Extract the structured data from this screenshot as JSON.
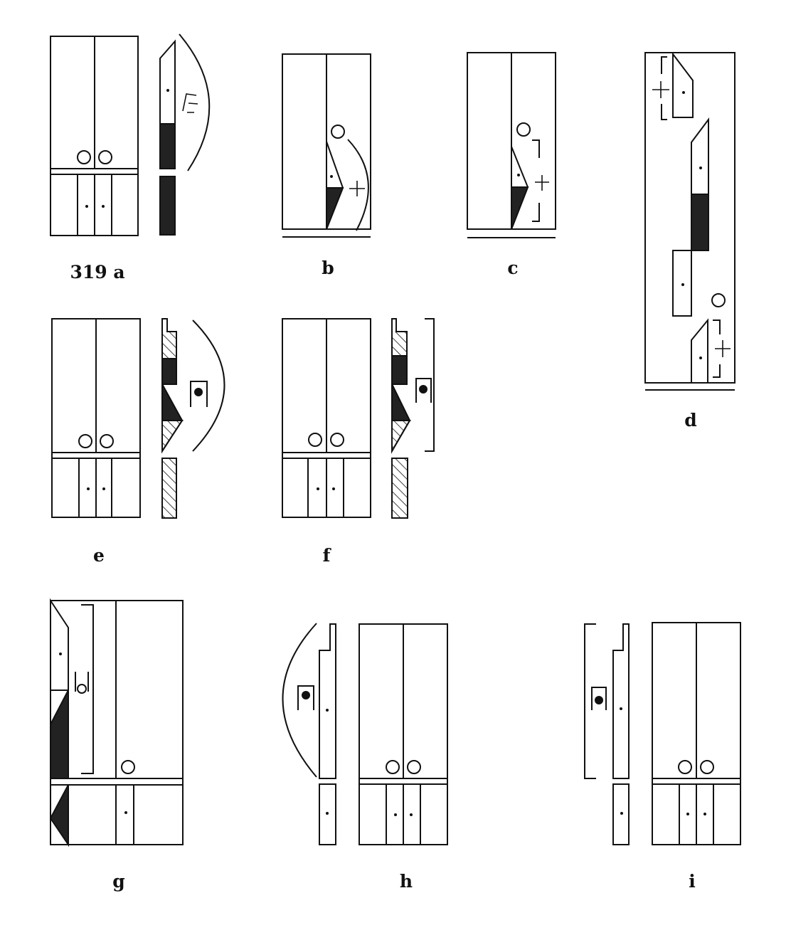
{
  "figure": {
    "labels": {
      "a": "319 a",
      "b": "b",
      "c": "c",
      "d": "d",
      "e": "e",
      "f": "f",
      "g": "g",
      "h": "h",
      "i": "i"
    },
    "symbols": {
      "plus": "+"
    },
    "colors": {
      "ink": "#111111",
      "fill": "#222222",
      "paper": "#ffffff"
    }
  }
}
